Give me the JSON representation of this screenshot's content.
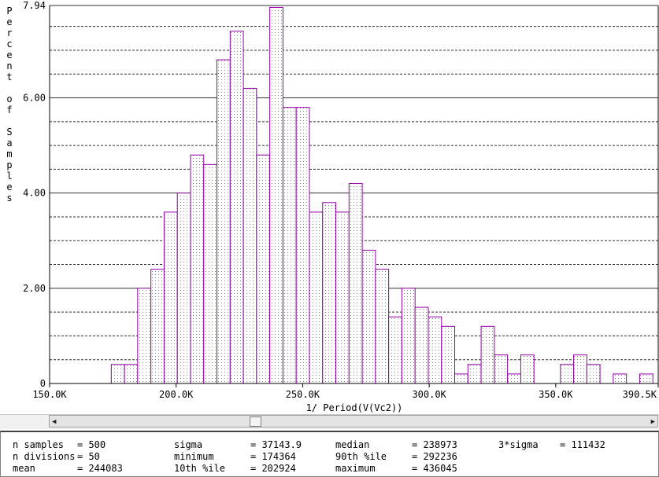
{
  "chart_data": {
    "type": "bar",
    "xlabel": "1/ Period(V(Vc2))",
    "ylabel": "Percent of Samples",
    "xlim": [
      150000,
      390500
    ],
    "ylim": [
      0,
      7.94
    ],
    "xticks": [
      "150.0K",
      "200.0K",
      "250.0K",
      "300.0K",
      "350.0K",
      "390.5K"
    ],
    "yticks": [
      "0",
      "2.00",
      "4.00",
      "6.00",
      "7.94"
    ],
    "bin_width": 5220,
    "bin_start": 174364,
    "values": [
      0.4,
      0.4,
      2.0,
      2.4,
      3.6,
      4.0,
      4.8,
      4.6,
      6.8,
      7.4,
      6.2,
      4.8,
      7.9,
      5.8,
      5.8,
      3.6,
      3.8,
      3.6,
      4.2,
      2.8,
      2.4,
      1.4,
      2.0,
      1.6,
      1.4,
      1.2,
      0.2,
      0.4,
      1.2,
      0.6,
      0.2,
      0.6,
      0.0,
      0.0,
      0.4,
      0.6,
      0.4,
      0.0,
      0.2,
      0.0,
      0.2
    ],
    "grid": true,
    "bar_color": "#9400a8"
  },
  "stats": {
    "rows": [
      [
        {
          "label": "n samples",
          "value": "500"
        },
        {
          "label": "sigma",
          "value": "37143.9"
        },
        {
          "label": "median",
          "value": "238973"
        },
        {
          "label": "3*sigma",
          "value": "111432"
        }
      ],
      [
        {
          "label": "n divisions",
          "value": "50"
        },
        {
          "label": "minimum",
          "value": "174364"
        },
        {
          "label": "90th %ile",
          "value": "292236"
        }
      ],
      [
        {
          "label": "mean",
          "value": "244083"
        },
        {
          "label": "10th %ile",
          "value": "202924"
        },
        {
          "label": "maximum",
          "value": "436045"
        }
      ]
    ]
  },
  "scrollbar": {
    "left_icon": "arrow-left-icon",
    "right_icon": "arrow-right-icon"
  }
}
